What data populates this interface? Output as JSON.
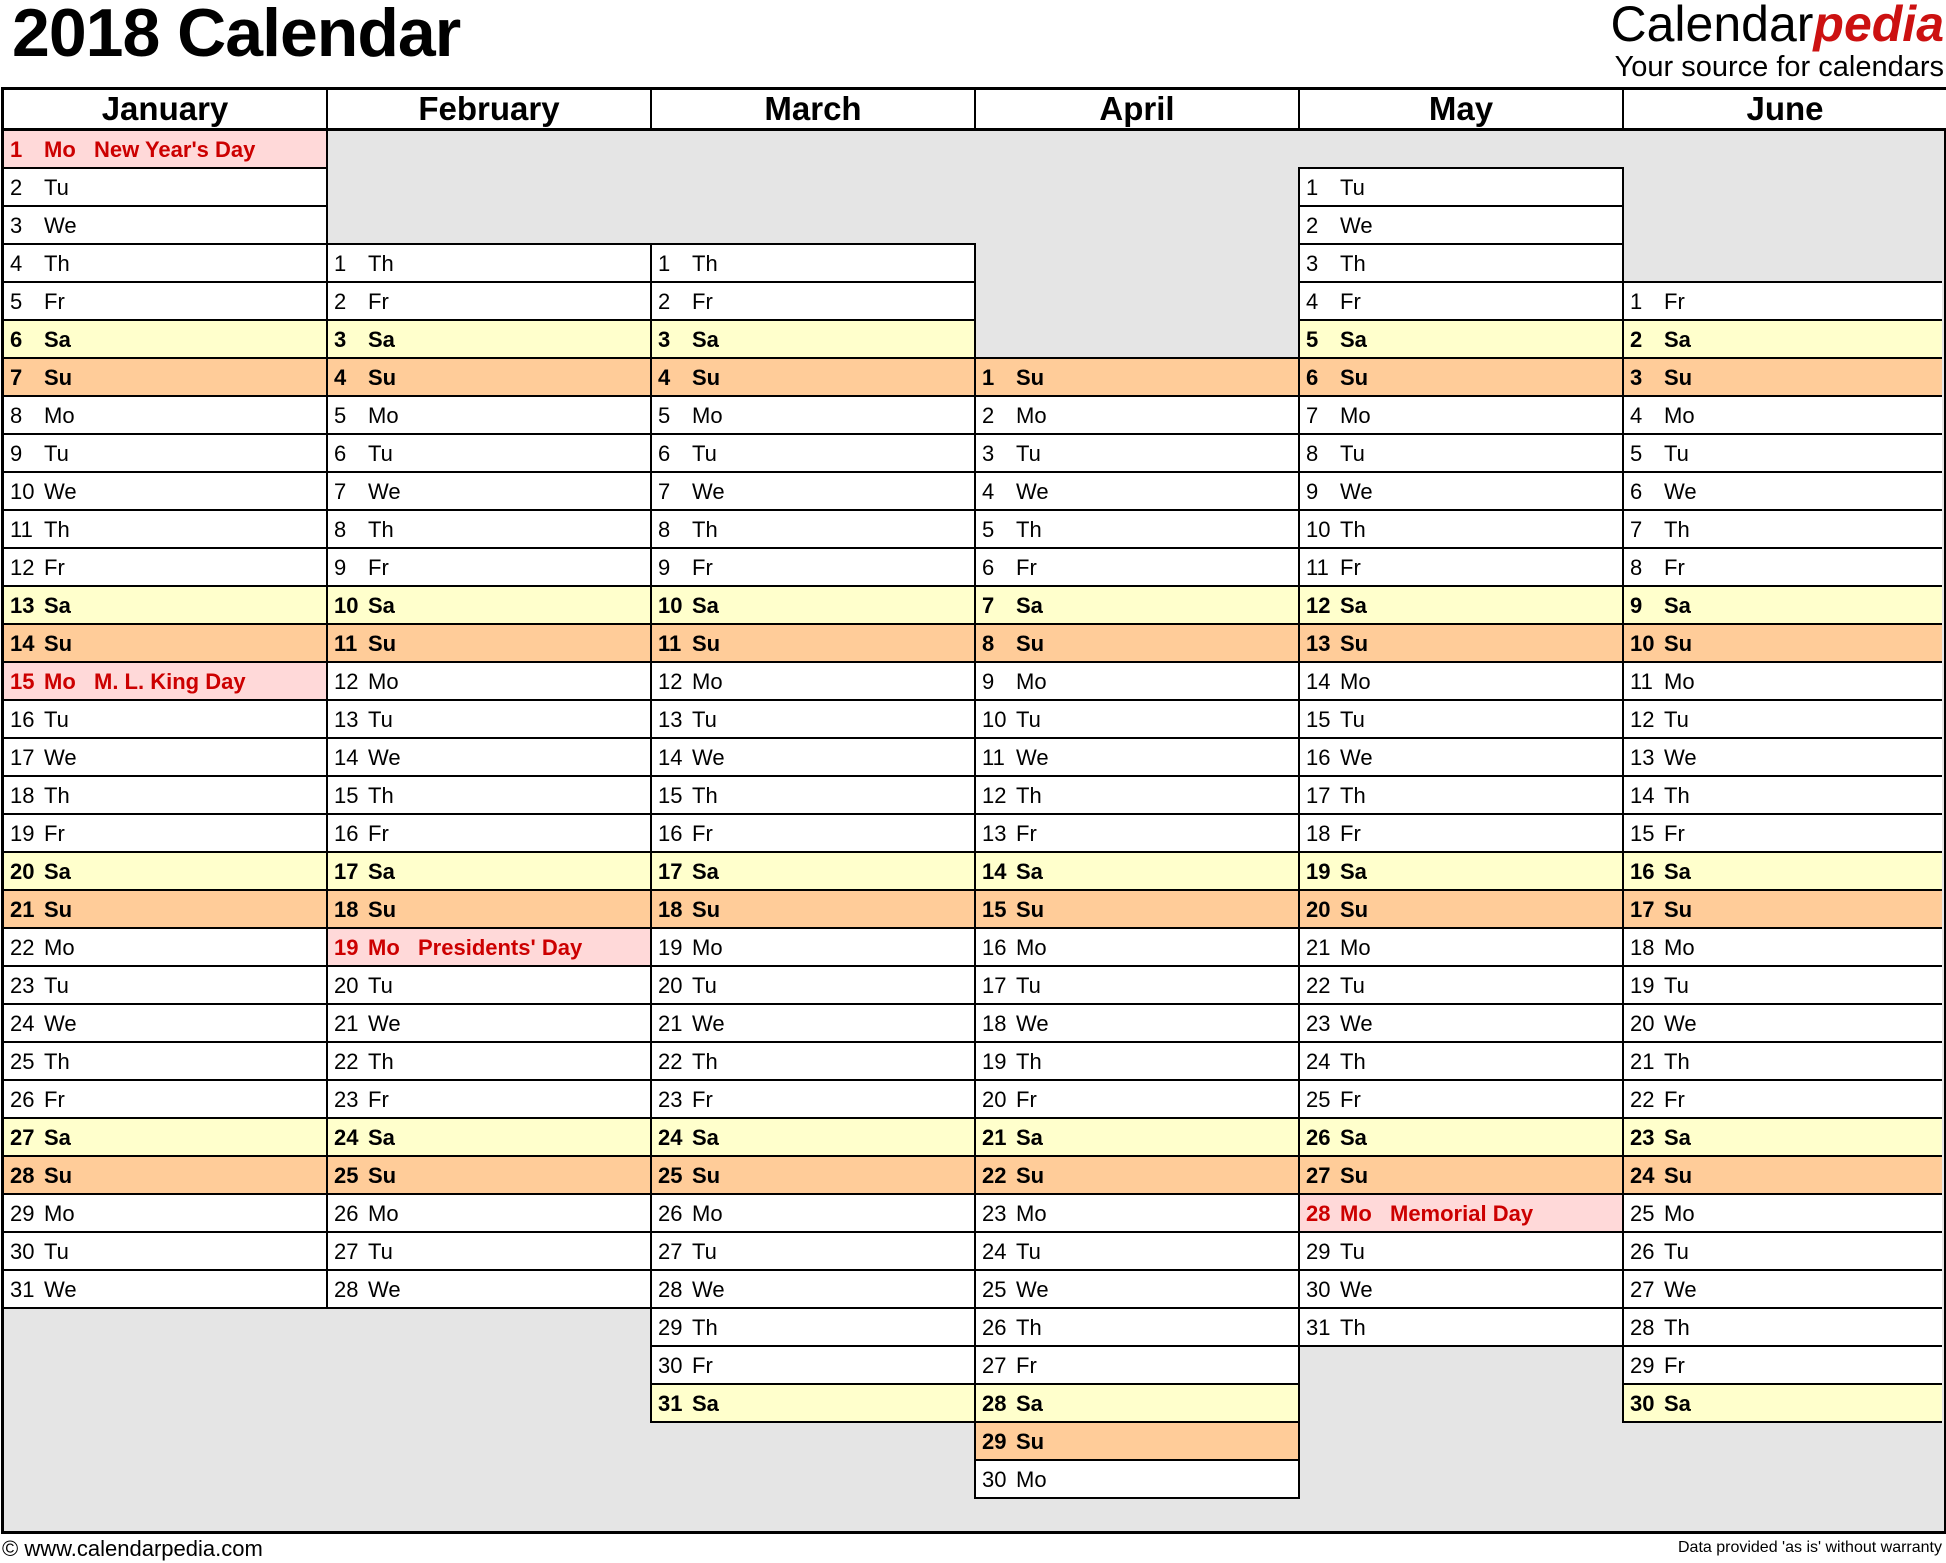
{
  "title": "2018 Calendar",
  "logo": {
    "brand_main": "Calendar",
    "brand_accent": "pedia",
    "tagline": "Your source for calendars"
  },
  "footer": {
    "left": "© www.calendarpedia.com",
    "right": "Data provided 'as is' without warranty"
  },
  "colors": {
    "saturday": "#ffffcc",
    "sunday": "#ffcc99",
    "holiday_bg": "#ffd9d9",
    "holiday_text": "#cc0000",
    "empty": "#e5e5e5",
    "brand_accent": "#cc1111"
  },
  "months": [
    {
      "name": "January",
      "days": [
        "1 Mo",
        "2 Tu",
        "3 We",
        "4 Th",
        "5 Fr",
        "6 Sa",
        "7 Su",
        "8 Mo",
        "9 Tu",
        "10 We",
        "11 Th",
        "12 Fr",
        "13 Sa",
        "14 Su",
        "15 Mo",
        "16 Tu",
        "17 We",
        "18 Th",
        "19 Fr",
        "20 Sa",
        "21 Su",
        "22 Mo",
        "23 Tu",
        "24 We",
        "25 Th",
        "26 Fr",
        "27 Sa",
        "28 Su",
        "29 Mo",
        "30 Tu",
        "31 We"
      ],
      "holidays": {
        "1": "New Year's Day",
        "15": "M. L. King Day"
      }
    },
    {
      "name": "February",
      "days": [
        "1 Th",
        "2 Fr",
        "3 Sa",
        "4 Su",
        "5 Mo",
        "6 Tu",
        "7 We",
        "8 Th",
        "9 Fr",
        "10 Sa",
        "11 Su",
        "12 Mo",
        "13 Tu",
        "14 We",
        "15 Th",
        "16 Fr",
        "17 Sa",
        "18 Su",
        "19 Mo",
        "20 Tu",
        "21 We",
        "22 Th",
        "23 Fr",
        "24 Sa",
        "25 Su",
        "26 Mo",
        "27 Tu",
        "28 We"
      ],
      "holidays": {
        "19": "Presidents' Day"
      }
    },
    {
      "name": "March",
      "days": [
        "1 Th",
        "2 Fr",
        "3 Sa",
        "4 Su",
        "5 Mo",
        "6 Tu",
        "7 We",
        "8 Th",
        "9 Fr",
        "10 Sa",
        "11 Su",
        "12 Mo",
        "13 Tu",
        "14 We",
        "15 Th",
        "16 Fr",
        "17 Sa",
        "18 Su",
        "19 Mo",
        "20 Tu",
        "21 We",
        "22 Th",
        "23 Fr",
        "24 Sa",
        "25 Su",
        "26 Mo",
        "27 Tu",
        "28 We",
        "29 Th",
        "30 Fr",
        "31 Sa"
      ],
      "holidays": {}
    },
    {
      "name": "April",
      "days": [
        "1 Su",
        "2 Mo",
        "3 Tu",
        "4 We",
        "5 Th",
        "6 Fr",
        "7 Sa",
        "8 Su",
        "9 Mo",
        "10 Tu",
        "11 We",
        "12 Th",
        "13 Fr",
        "14 Sa",
        "15 Su",
        "16 Mo",
        "17 Tu",
        "18 We",
        "19 Th",
        "20 Fr",
        "21 Sa",
        "22 Su",
        "23 Mo",
        "24 Tu",
        "25 We",
        "26 Th",
        "27 Fr",
        "28 Sa",
        "29 Su",
        "30 Mo"
      ],
      "holidays": {}
    },
    {
      "name": "May",
      "days": [
        "1 Tu",
        "2 We",
        "3 Th",
        "4 Fr",
        "5 Sa",
        "6 Su",
        "7 Mo",
        "8 Tu",
        "9 We",
        "10 Th",
        "11 Fr",
        "12 Sa",
        "13 Su",
        "14 Mo",
        "15 Tu",
        "16 We",
        "17 Th",
        "18 Fr",
        "19 Sa",
        "20 Su",
        "21 Mo",
        "22 Tu",
        "23 We",
        "24 Th",
        "25 Fr",
        "26 Sa",
        "27 Su",
        "28 Mo",
        "29 Tu",
        "30 We",
        "31 Th"
      ],
      "holidays": {
        "28": "Memorial Day"
      }
    },
    {
      "name": "June",
      "days": [
        "1 Fr",
        "2 Sa",
        "3 Su",
        "4 Mo",
        "5 Tu",
        "6 We",
        "7 Th",
        "8 Fr",
        "9 Sa",
        "10 Su",
        "11 Mo",
        "12 Tu",
        "13 We",
        "14 Th",
        "15 Fr",
        "16 Sa",
        "17 Su",
        "18 Mo",
        "19 Tu",
        "20 We",
        "21 Th",
        "22 Fr",
        "23 Sa",
        "24 Su",
        "25 Mo",
        "26 Tu",
        "27 We",
        "28 Th",
        "29 Fr",
        "30 Sa"
      ],
      "holidays": {}
    }
  ]
}
